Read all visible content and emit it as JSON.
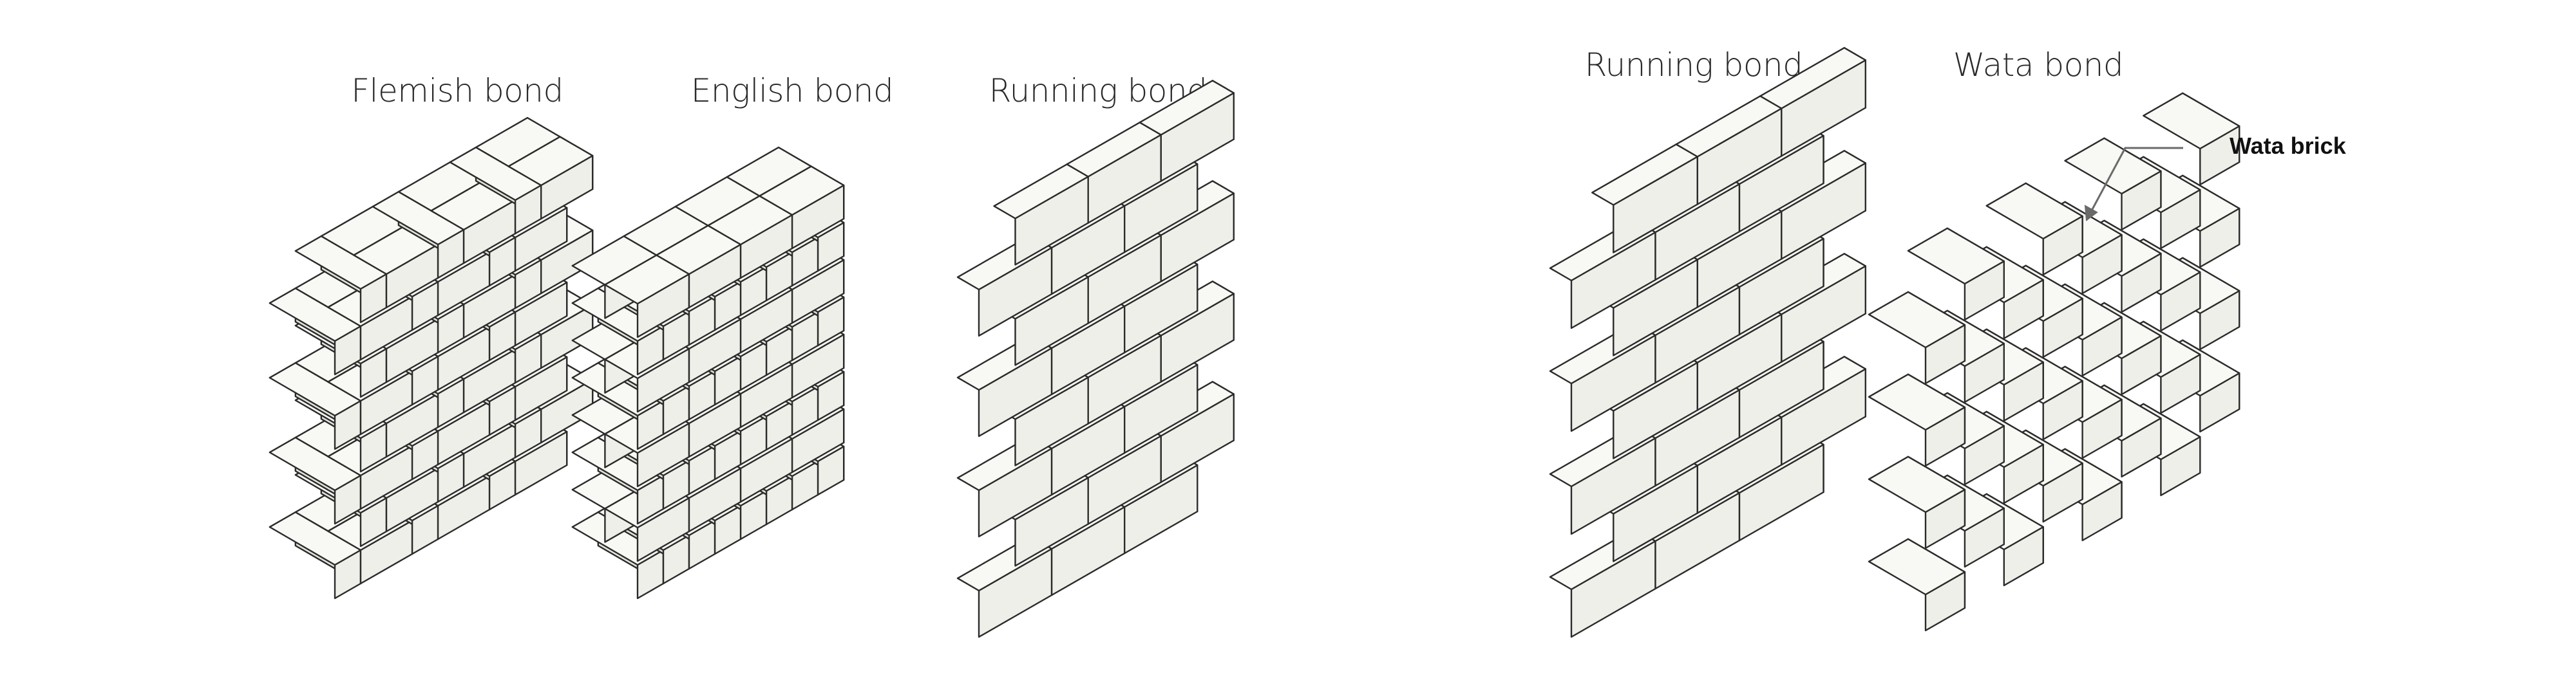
{
  "diagram": {
    "titles": [
      "Flemish bond",
      "English bond",
      "Running bond",
      "Running bond",
      "Wata bond"
    ],
    "callout": "Wata brick",
    "colors": {
      "face": "#efefe9",
      "top": "#f8f8f4",
      "side": "#e3e3dc",
      "stroke": "#2b2b2b",
      "leader": "#6a6a6a"
    }
  }
}
